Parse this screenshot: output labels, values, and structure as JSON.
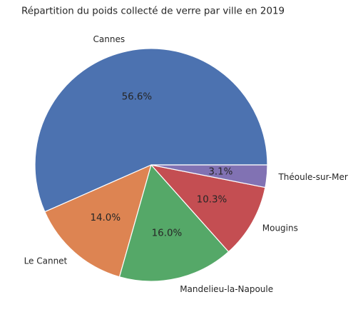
{
  "chart_data": {
    "type": "pie",
    "title": "Répartition du poids collecté de verre par ville en 2019",
    "start_angle_deg": 0,
    "direction": "counterclockwise",
    "slices": [
      {
        "label": "Cannes",
        "value": 56.6,
        "pct_label": "56.6%",
        "color": "#4c72b0"
      },
      {
        "label": "Le Cannet",
        "value": 14.0,
        "pct_label": "14.0%",
        "color": "#dd8452"
      },
      {
        "label": "Mandelieu-la-Napoule",
        "value": 16.0,
        "pct_label": "16.0%",
        "color": "#55a868"
      },
      {
        "label": "Mougins",
        "value": 10.3,
        "pct_label": "10.3%",
        "color": "#c44e52"
      },
      {
        "label": "Théoule-sur-Mer",
        "value": 3.1,
        "pct_label": "3.1%",
        "color": "#8172b3"
      }
    ]
  }
}
